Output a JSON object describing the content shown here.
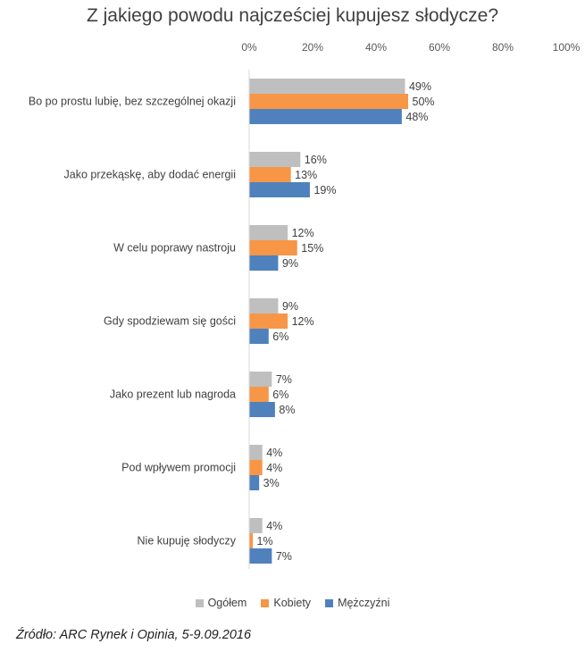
{
  "chart_data": {
    "type": "bar",
    "orientation": "horizontal",
    "title": "Z jakiego powodu najcześciej kupujesz słodycze?",
    "categories": [
      "Bo po prostu lubię, bez szczególnej okazji",
      "Jako przekąskę, aby dodać energii",
      "W celu poprawy nastroju",
      "Gdy spodziewam się gości",
      "Jako prezent lub nagroda",
      "Pod wpływem promocji",
      "Nie kupuję słodyczy"
    ],
    "series": [
      {
        "name": "Ogółem",
        "color": "#bfbfbf",
        "values": [
          49,
          16,
          12,
          9,
          7,
          4,
          4
        ]
      },
      {
        "name": "Kobiety",
        "color": "#f79646",
        "values": [
          50,
          13,
          15,
          12,
          6,
          4,
          1
        ]
      },
      {
        "name": "Mężczyźni",
        "color": "#4f81bd",
        "values": [
          48,
          19,
          9,
          6,
          8,
          3,
          7
        ]
      }
    ],
    "xlim": [
      0,
      100
    ],
    "xticks": [
      "0%",
      "20%",
      "40%",
      "60%",
      "80%",
      "100%"
    ],
    "tick_values": [
      0,
      20,
      40,
      60,
      80,
      100
    ],
    "value_suffix": "%",
    "axis_position": "top",
    "legend_position": "bottom",
    "grid": false
  },
  "source": "Źródło: ARC Rynek i Opinia, 5-9.09.2016"
}
